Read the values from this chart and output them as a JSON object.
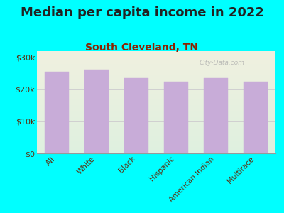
{
  "title": "Median per capita income in 2022",
  "subtitle": "South Cleveland, TN",
  "categories": [
    "All",
    "White",
    "Black",
    "Hispanic",
    "American Indian",
    "Multirace"
  ],
  "values": [
    25500,
    26200,
    23500,
    22500,
    23500,
    22500
  ],
  "bar_color": "#c8acd8",
  "background_color": "#00ffff",
  "plot_bg_color_top": "#f0f0e0",
  "plot_bg_color_bottom": "#dff0df",
  "title_fontsize": 13,
  "title_color": "#222222",
  "subtitle_fontsize": 10,
  "subtitle_color": "#8B2200",
  "tick_label_color": "#5a3010",
  "ytick_labels": [
    "$0",
    "$10k",
    "$20k",
    "$30k"
  ],
  "ytick_values": [
    0,
    10000,
    20000,
    30000
  ],
  "ylim": [
    0,
    32000
  ],
  "watermark": "City-Data.com",
  "grid_color": "#d0d0d0"
}
